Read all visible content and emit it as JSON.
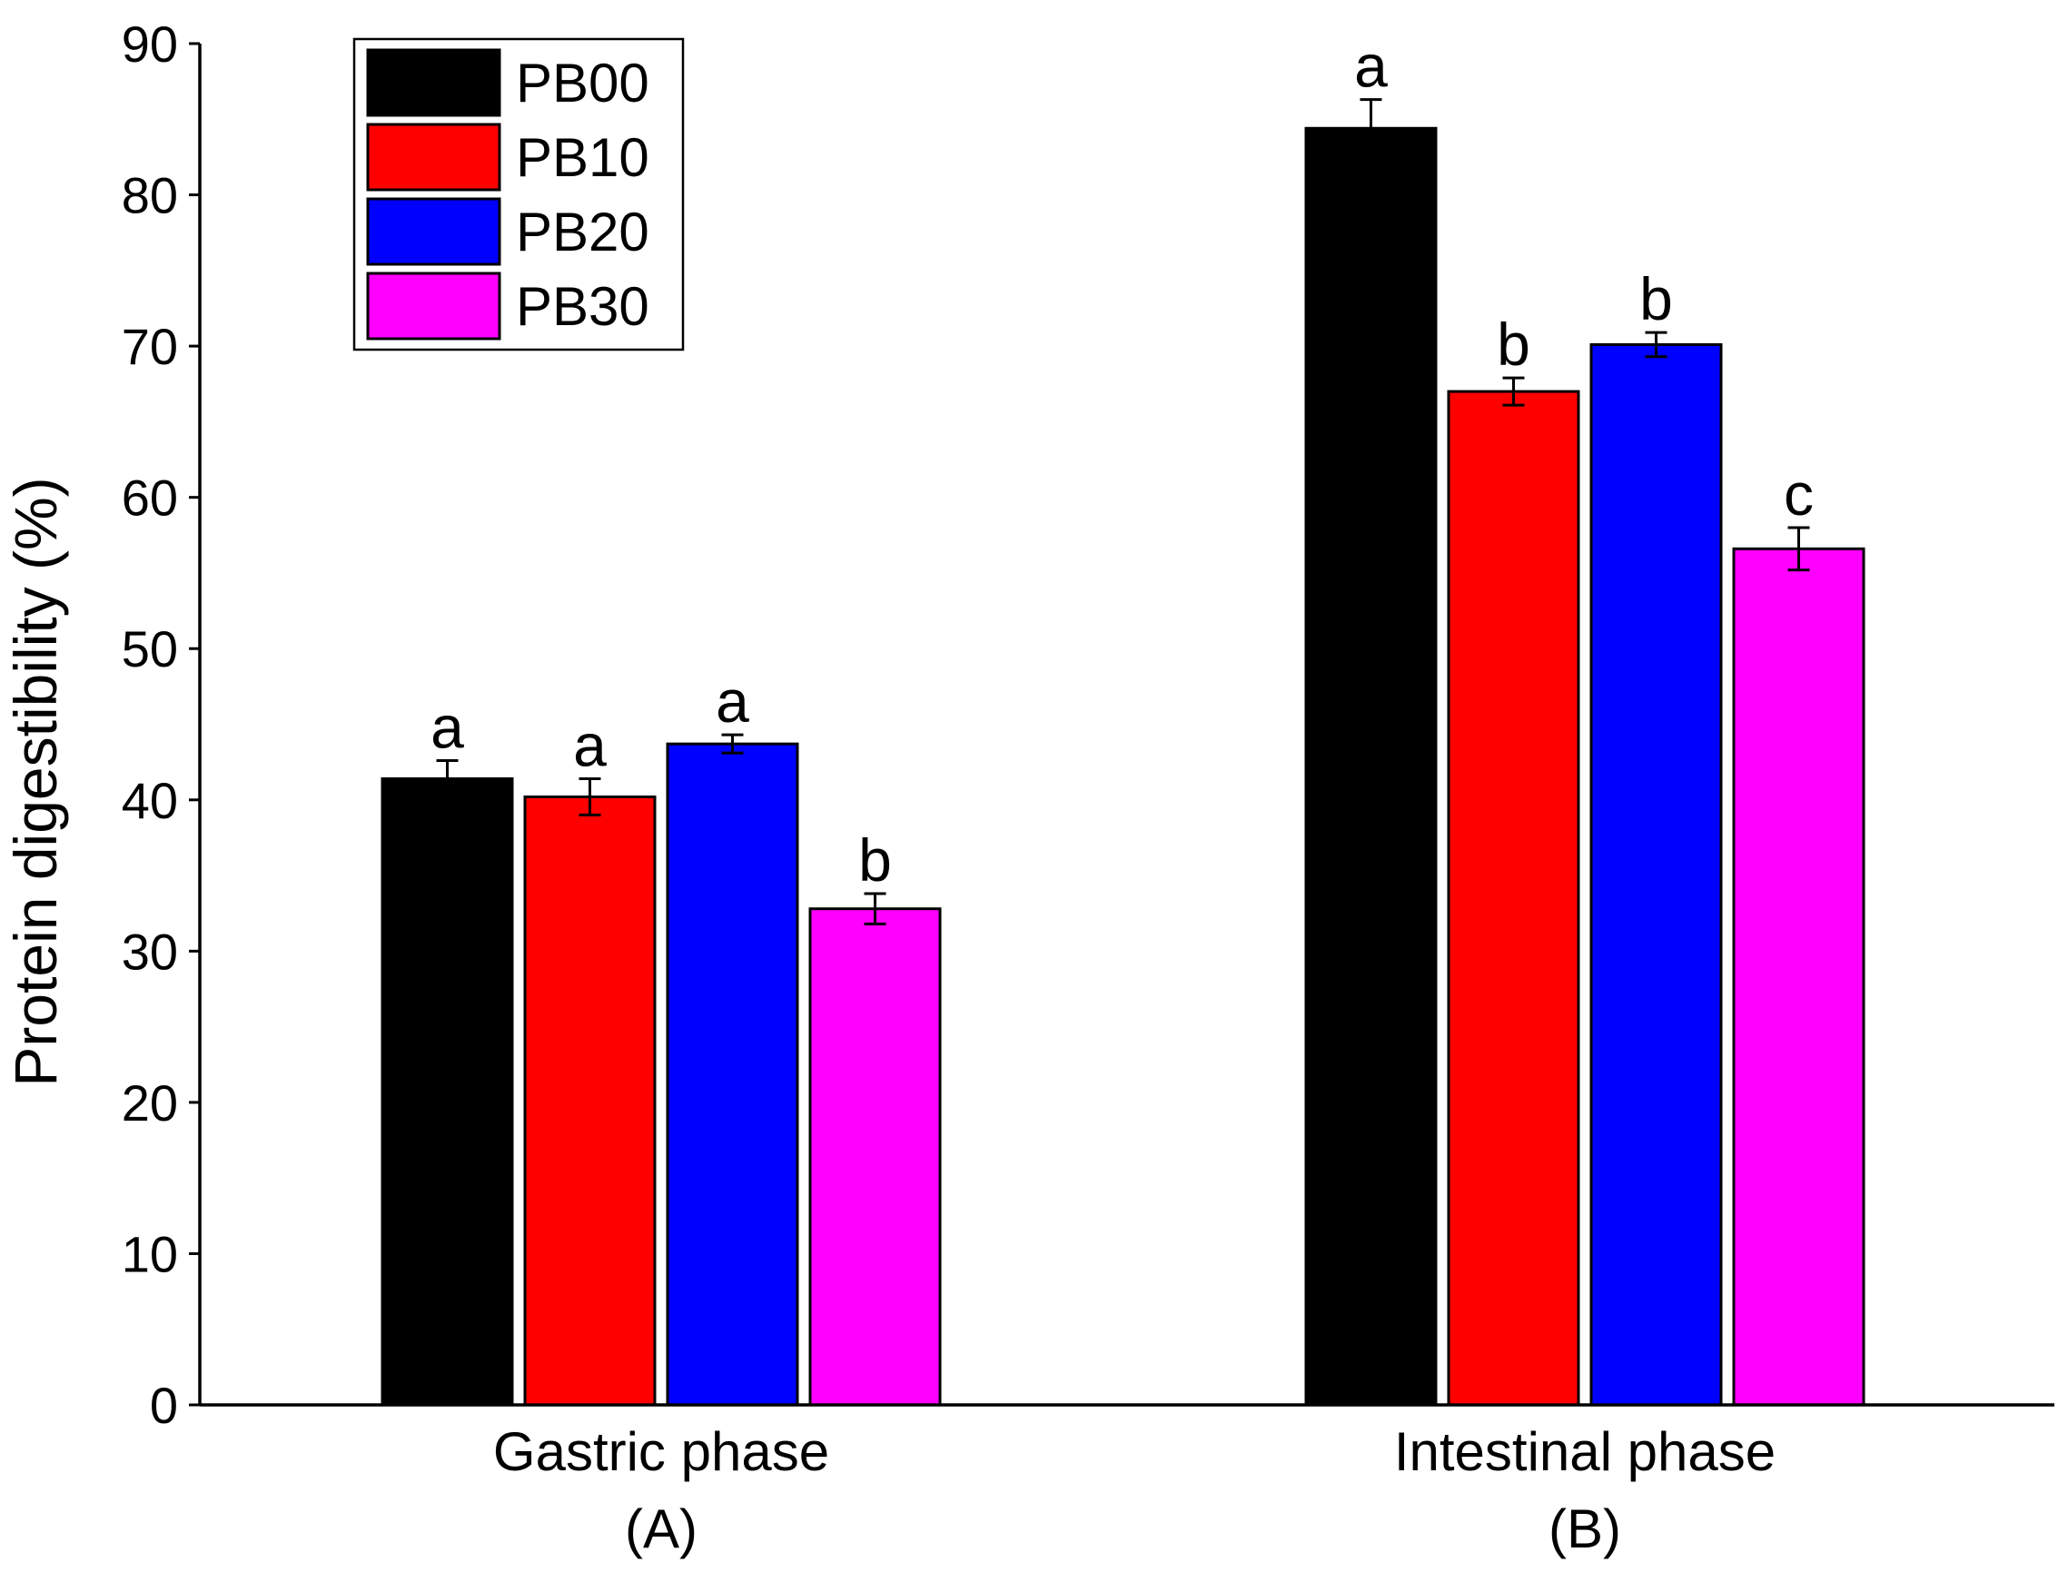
{
  "chart_data": {
    "type": "bar",
    "title": "",
    "xlabel": "",
    "ylabel": "Protein digestibility (%)",
    "ylim": [
      0,
      90
    ],
    "yticks": [
      0,
      10,
      20,
      30,
      40,
      50,
      60,
      70,
      80,
      90
    ],
    "grid": false,
    "legend_position": "top-left",
    "categories": [
      {
        "name": "Gastric phase",
        "panel": "(A)"
      },
      {
        "name": "Intestinal phase",
        "panel": "(B)"
      }
    ],
    "series": [
      {
        "name": "PB00",
        "color": "#000000",
        "values": [
          41.4,
          84.4
        ],
        "errors": [
          1.2,
          1.9
        ],
        "letters": [
          "a",
          "a"
        ]
      },
      {
        "name": "PB10",
        "color": "#ff0000",
        "values": [
          40.2,
          67.0
        ],
        "errors": [
          1.2,
          0.9
        ],
        "letters": [
          "a",
          "b"
        ]
      },
      {
        "name": "PB20",
        "color": "#0000ff",
        "values": [
          43.7,
          70.1
        ],
        "errors": [
          0.6,
          0.8
        ],
        "letters": [
          "a",
          "b"
        ]
      },
      {
        "name": "PB30",
        "color": "#ff00ff",
        "values": [
          32.8,
          56.6
        ],
        "errors": [
          1.0,
          1.4
        ],
        "letters": [
          "b",
          "c"
        ]
      }
    ]
  }
}
